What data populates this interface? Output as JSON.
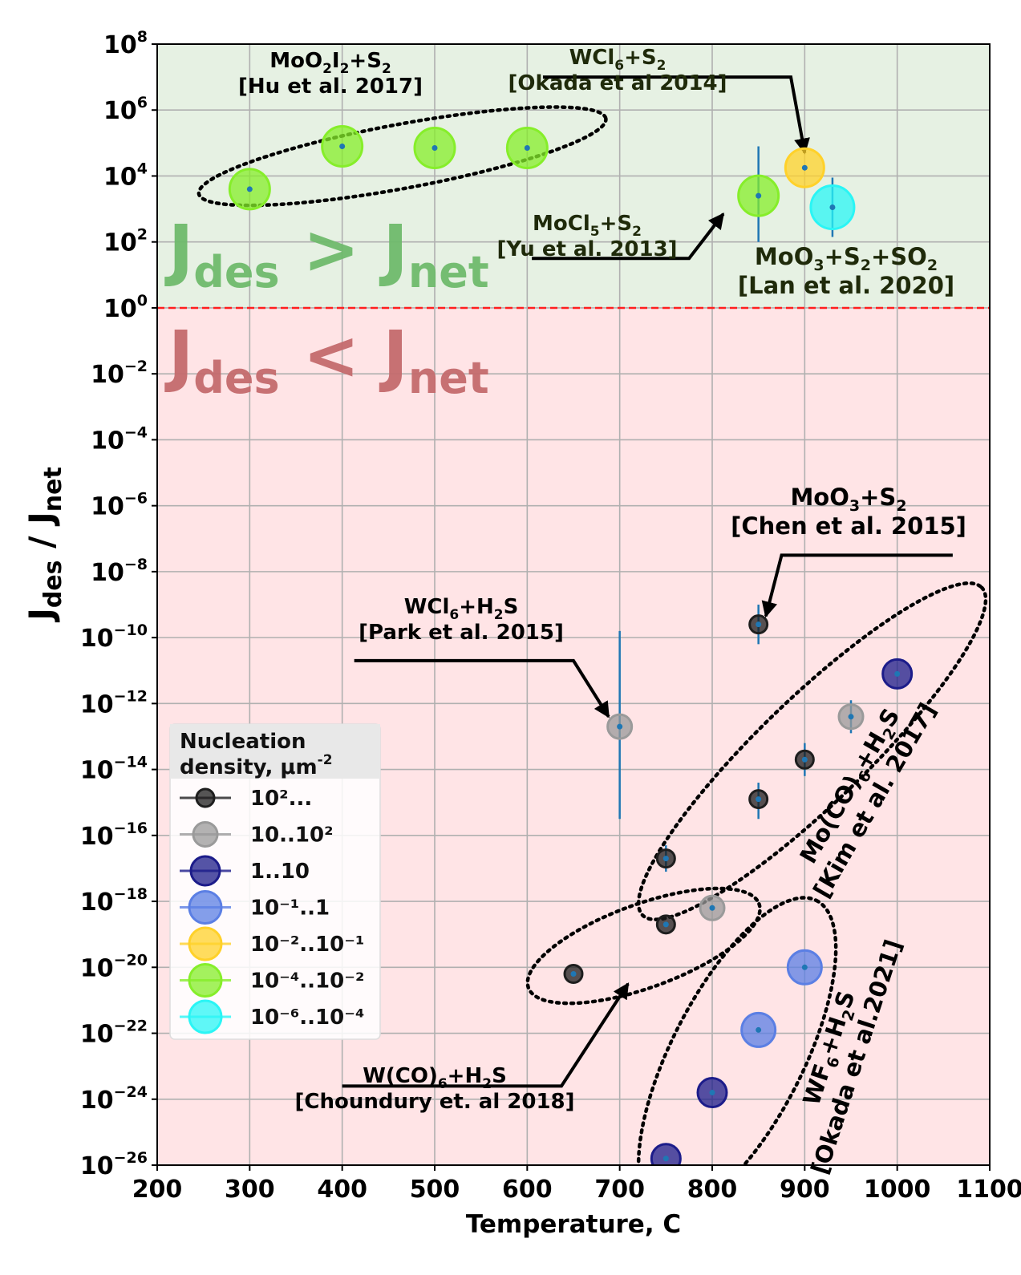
{
  "chart_data": {
    "type": "scatter",
    "xlabel": "Temperature, C",
    "ylabel": "J",
    "ylabel_sub1": "des",
    "ylabel_sep": " / J",
    "ylabel_sub2": "net",
    "xlim": [
      200,
      1100
    ],
    "ylim_log10": [
      -26,
      8
    ],
    "y_scale": "log",
    "grid": true,
    "x_ticks": [
      200,
      300,
      400,
      500,
      600,
      700,
      800,
      900,
      1000,
      1100
    ],
    "x_tick_labels": [
      "200",
      "300",
      "400",
      "500",
      "600",
      "700",
      "800",
      "900",
      "1000",
      "1100"
    ],
    "y_ticks_log10": [
      8,
      6,
      4,
      2,
      0,
      -2,
      -4,
      -6,
      -8,
      -10,
      -12,
      -14,
      -16,
      -18,
      -20,
      -22,
      -24,
      -26
    ],
    "y_tick_exponents": [
      "8",
      "6",
      "4",
      "2",
      "0",
      "−2",
      "−4",
      "−6",
      "−8",
      "−10",
      "−12",
      "−14",
      "−16",
      "−18",
      "−20",
      "−22",
      "−24",
      "−26"
    ],
    "y_tick_base": "10",
    "threshold_log10": 0,
    "colors": {
      "upper_region": "#e6f1e3",
      "lower_region": "#ffe4e6",
      "threshold_line": "#ff1f1f",
      "errorbar": "#1f77b4",
      "upper_label": "#6fb96c",
      "lower_label": "#c46a6d",
      "grid": "#b0b0b0"
    },
    "region_labels": {
      "upper": {
        "j": "J",
        "sub1": "des",
        "op": ">",
        "sub2": "net"
      },
      "lower": {
        "j": "J",
        "sub1": "des",
        "op": "<",
        "sub2": "net"
      }
    },
    "legend": {
      "title_line1": "Nucleation",
      "title_line2": "density, μm",
      "title_sup": "-2",
      "placement": "lower-left",
      "entries": [
        {
          "label": "10²...",
          "category": "c1"
        },
        {
          "label": "10..10²",
          "category": "c2"
        },
        {
          "label": "1..10",
          "category": "c3"
        },
        {
          "label": "10⁻¹..1",
          "category": "c4"
        },
        {
          "label": "10⁻²..10⁻¹",
          "category": "c5"
        },
        {
          "label": "10⁻⁴..10⁻²",
          "category": "c6"
        },
        {
          "label": "10⁻⁶..10⁻⁴",
          "category": "c7"
        }
      ]
    },
    "categories": {
      "c1": {
        "color": "#1e1e1e",
        "size": 11
      },
      "c2": {
        "color": "#9a9a9a",
        "size": 15
      },
      "c3": {
        "color": "#1c1c8a",
        "size": 18
      },
      "c4": {
        "color": "#5b7fe4",
        "size": 21
      },
      "c5": {
        "color": "#ffd12a",
        "size": 24
      },
      "c6": {
        "color": "#86ee2a",
        "size": 25
      },
      "c7": {
        "color": "#2af5f5",
        "size": 27
      }
    },
    "points": [
      {
        "x": 300,
        "y_log10": 3.6,
        "category": "c6"
      },
      {
        "x": 400,
        "y_log10": 4.9,
        "category": "c6"
      },
      {
        "x": 500,
        "y_log10": 4.85,
        "category": "c6"
      },
      {
        "x": 600,
        "y_log10": 4.85,
        "category": "c6"
      },
      {
        "x": 850,
        "y_log10": 3.4,
        "category": "c6",
        "err_log10": [
          2.0,
          4.9
        ]
      },
      {
        "x": 900,
        "y_log10": 4.25,
        "category": "c5"
      },
      {
        "x": 930,
        "y_log10": 3.05,
        "category": "c7",
        "err_log10": [
          2.15,
          3.95
        ]
      },
      {
        "x": 850,
        "y_log10": -9.6,
        "category": "c1",
        "err_log10": [
          -10.2,
          -9.0
        ]
      },
      {
        "x": 1000,
        "y_log10": -11.1,
        "category": "c3"
      },
      {
        "x": 950,
        "y_log10": -12.4,
        "category": "c2",
        "err_log10": [
          -12.9,
          -11.9
        ]
      },
      {
        "x": 900,
        "y_log10": -13.7,
        "category": "c1",
        "err_log10": [
          -14.2,
          -13.2
        ]
      },
      {
        "x": 850,
        "y_log10": -14.9,
        "category": "c1",
        "err_log10": [
          -15.5,
          -14.4
        ]
      },
      {
        "x": 750,
        "y_log10": -16.7,
        "category": "c1",
        "err_log10": [
          -17.1,
          -16.3
        ]
      },
      {
        "x": 800,
        "y_log10": -18.2,
        "category": "c2"
      },
      {
        "x": 750,
        "y_log10": -18.7,
        "category": "c1"
      },
      {
        "x": 650,
        "y_log10": -20.2,
        "category": "c1"
      },
      {
        "x": 700,
        "y_log10": -12.7,
        "category": "c2",
        "err_log10": [
          -15.5,
          -9.8
        ]
      },
      {
        "x": 900,
        "y_log10": -20.0,
        "category": "c4"
      },
      {
        "x": 850,
        "y_log10": -21.9,
        "category": "c4"
      },
      {
        "x": 800,
        "y_log10": -23.8,
        "category": "c3"
      },
      {
        "x": 750,
        "y_log10": -25.8,
        "category": "c3"
      }
    ],
    "annotations": [
      {
        "segments": [
          {
            "t": "MoO"
          },
          {
            "t": "2",
            "sub": true
          },
          {
            "t": "I"
          },
          {
            "t": "2",
            "sub": true
          },
          {
            "t": "+S"
          },
          {
            "t": "2",
            "sub": true
          }
        ],
        "line2": "[Hu et al. 2017]",
        "color": "#000000",
        "size": "normal"
      },
      {
        "segments": [
          {
            "t": "WCl"
          },
          {
            "t": "6",
            "sub": true
          },
          {
            "t": "+S"
          },
          {
            "t": "2",
            "sub": true
          }
        ],
        "line2": "[Okada et al 2014]",
        "color": "#1f2a0a",
        "size": "normal"
      },
      {
        "segments": [
          {
            "t": "MoCl"
          },
          {
            "t": "5",
            "sub": true
          },
          {
            "t": "+S"
          },
          {
            "t": "2",
            "sub": true
          }
        ],
        "line2": "[Yu et al. 2013]",
        "color": "#1f2a0a",
        "size": "normal"
      },
      {
        "segments": [
          {
            "t": "MoO"
          },
          {
            "t": "3",
            "sub": true
          },
          {
            "t": "+S"
          },
          {
            "t": "2",
            "sub": true
          },
          {
            "t": "+SO"
          },
          {
            "t": "2",
            "sub": true
          }
        ],
        "line2": "[Lan et al. 2020]",
        "color": "#1f2a0a",
        "size": "big"
      },
      {
        "segments": [
          {
            "t": "MoO"
          },
          {
            "t": "3",
            "sub": true
          },
          {
            "t": "+S"
          },
          {
            "t": "2",
            "sub": true
          }
        ],
        "line2": "[Chen et al. 2015]",
        "color": "#000000",
        "size": "big"
      },
      {
        "segments": [
          {
            "t": "WCl"
          },
          {
            "t": "6",
            "sub": true
          },
          {
            "t": "+H"
          },
          {
            "t": "2",
            "sub": true
          },
          {
            "t": "S"
          }
        ],
        "line2": "[Park et al. 2015]",
        "color": "#000000",
        "size": "normal"
      },
      {
        "segments": [
          {
            "t": "W(CO)"
          },
          {
            "t": "6",
            "sub": true
          },
          {
            "t": "+H"
          },
          {
            "t": "2",
            "sub": true
          },
          {
            "t": "S"
          }
        ],
        "line2": "[Choundury et. al 2018]",
        "color": "#000000",
        "size": "normal"
      },
      {
        "segments": [
          {
            "t": "Mo(CO)"
          },
          {
            "t": "6",
            "sub": true
          },
          {
            "t": "+H"
          },
          {
            "t": "2",
            "sub": true
          },
          {
            "t": "S"
          }
        ],
        "line2": "[Kim et al. 2017]",
        "color": "#000000",
        "size": "big"
      },
      {
        "segments": [
          {
            "t": "WF"
          },
          {
            "t": "6",
            "sub": true
          },
          {
            "t": "+H"
          },
          {
            "t": "2",
            "sub": true
          },
          {
            "t": "S"
          }
        ],
        "line2": "[Okada et al.2021]",
        "color": "#000000",
        "size": "big"
      }
    ]
  }
}
